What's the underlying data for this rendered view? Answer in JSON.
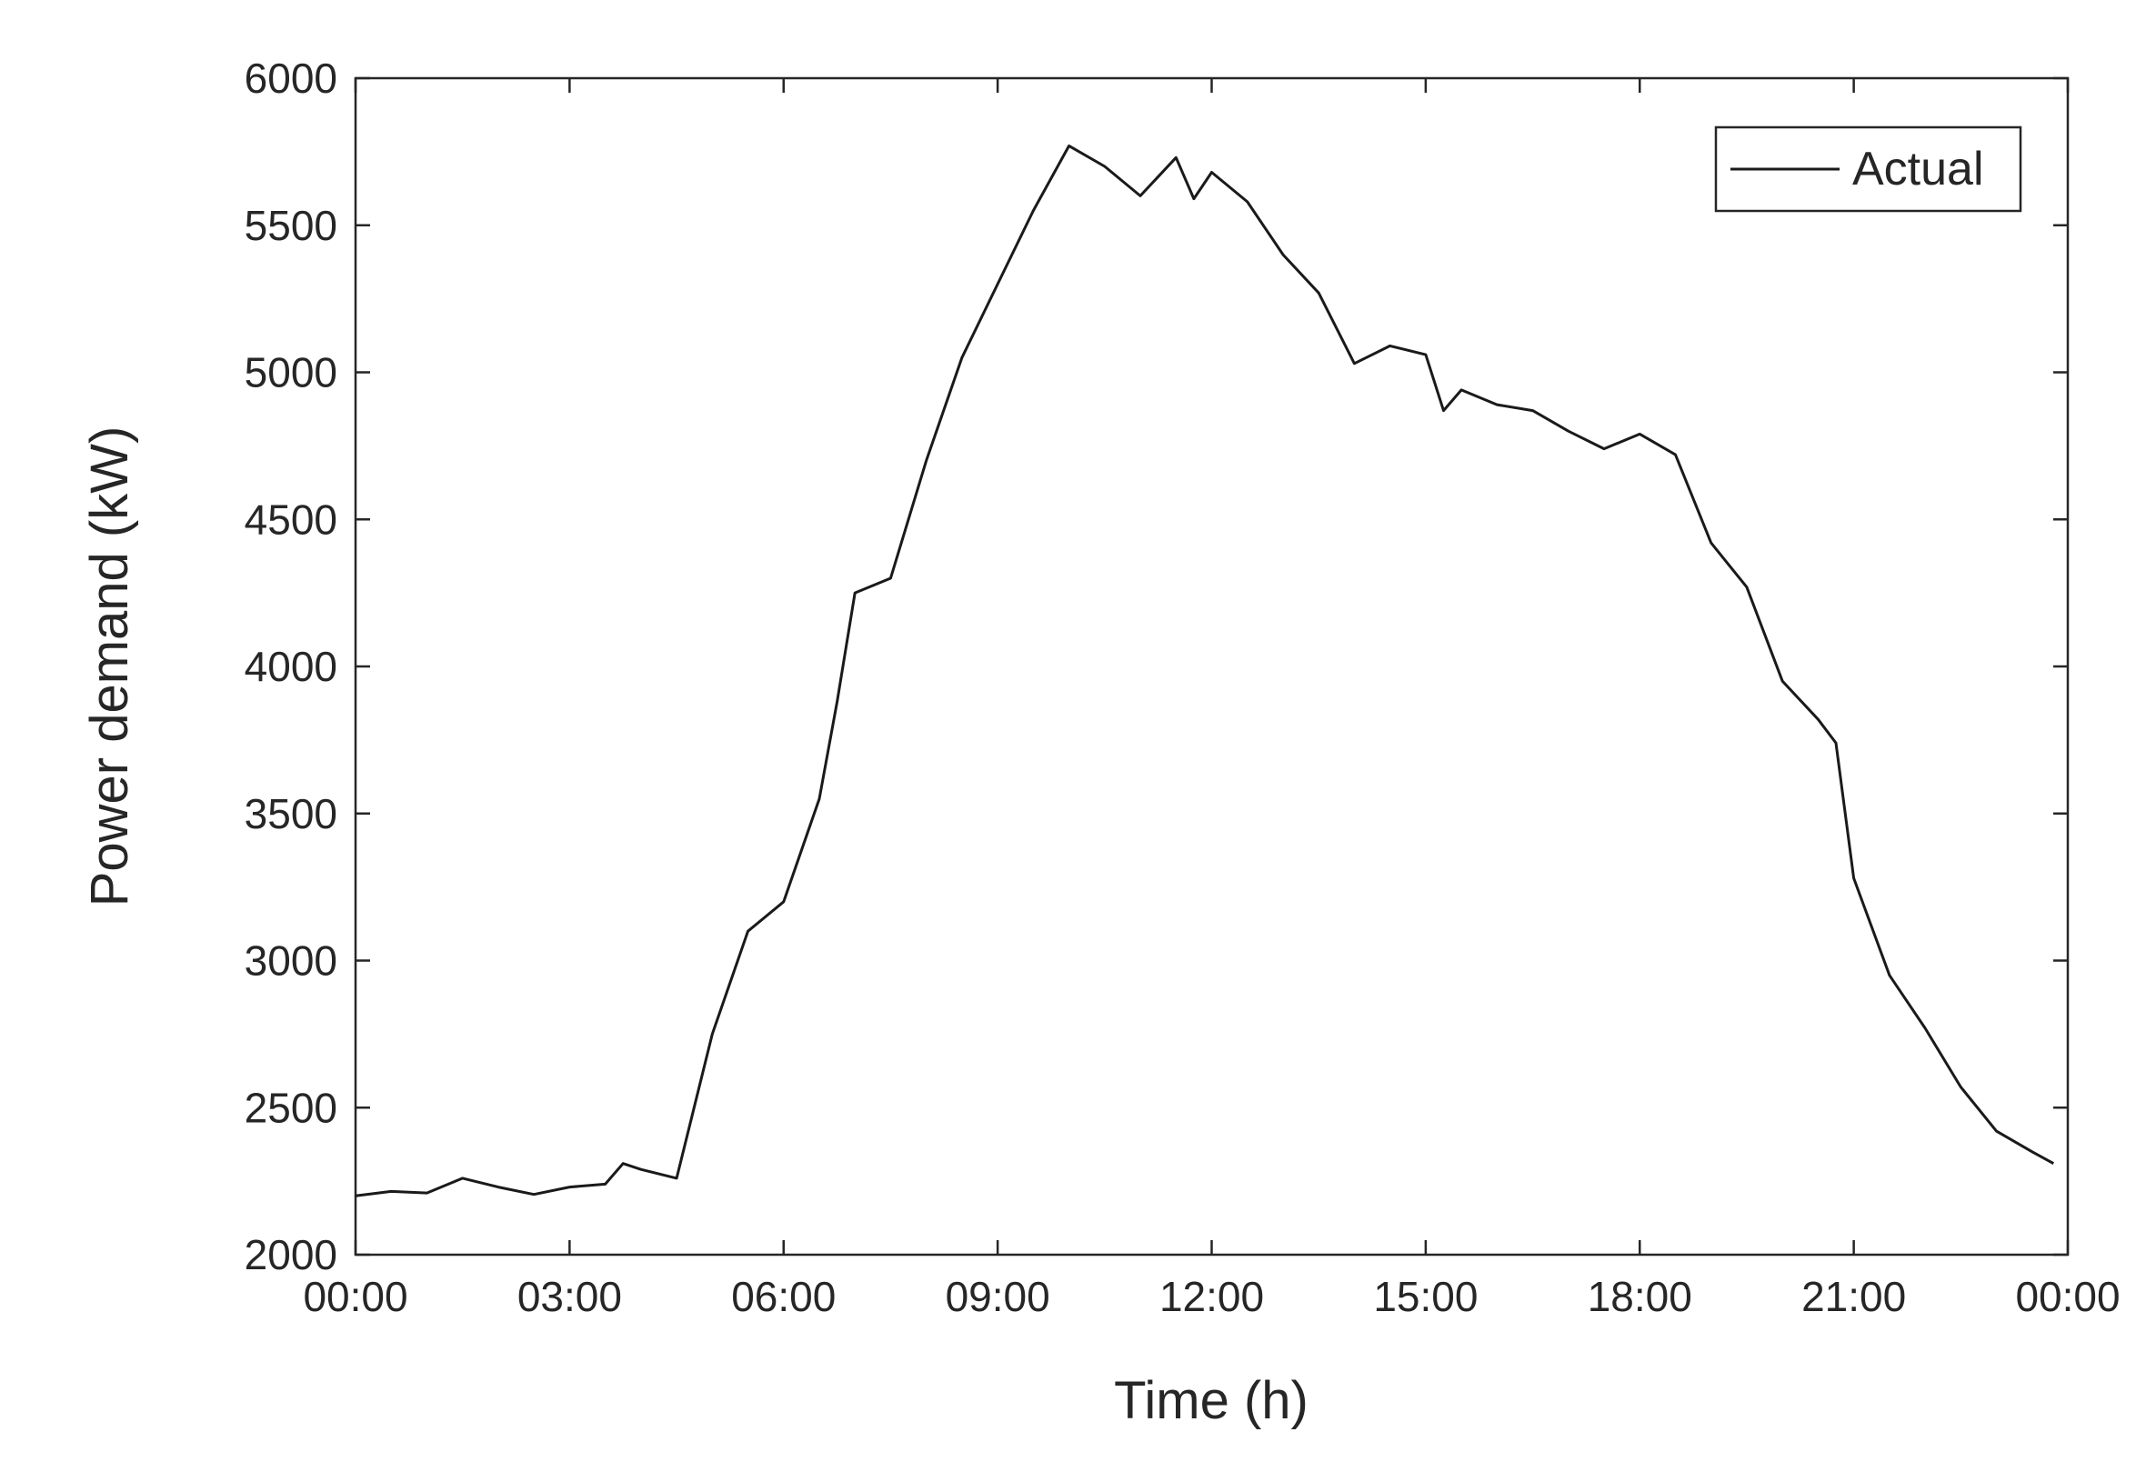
{
  "chart_data": {
    "type": "line",
    "x_label": "Time (h)",
    "y_label": "Power demand (kW)",
    "x": [
      0,
      0.5,
      1,
      1.5,
      2,
      2.5,
      3,
      3.5,
      3.75,
      4,
      4.5,
      5,
      5.5,
      6,
      6.5,
      6.75,
      7,
      7.5,
      8,
      8.5,
      9,
      9.5,
      10,
      10.5,
      11,
      11.5,
      11.75,
      12,
      12.5,
      13,
      13.5,
      14,
      14.5,
      15,
      15.25,
      15.5,
      16,
      16.5,
      17,
      17.5,
      18,
      18.5,
      19,
      19.5,
      20,
      20.5,
      20.75,
      21,
      21.5,
      22,
      22.5,
      23,
      23.5,
      23.8
    ],
    "series": [
      {
        "name": "Actual",
        "color": "#1a1a1a",
        "values": [
          2200,
          2215,
          2210,
          2260,
          2230,
          2205,
          2230,
          2240,
          2310,
          2290,
          2260,
          2750,
          3100,
          3200,
          3550,
          3880,
          4250,
          4300,
          4700,
          5050,
          5300,
          5550,
          5770,
          5700,
          5600,
          5730,
          5590,
          5680,
          5580,
          5400,
          5270,
          5030,
          5090,
          5060,
          4870,
          4940,
          4890,
          4870,
          4800,
          4740,
          4790,
          4720,
          4420,
          4270,
          3950,
          3820,
          3740,
          3280,
          2950,
          2770,
          2570,
          2420,
          2350,
          2310
        ]
      }
    ],
    "xlim": [
      0,
      24
    ],
    "xticks": [
      {
        "value": 0,
        "label": "00:00"
      },
      {
        "value": 3,
        "label": "03:00"
      },
      {
        "value": 6,
        "label": "06:00"
      },
      {
        "value": 9,
        "label": "09:00"
      },
      {
        "value": 12,
        "label": "12:00"
      },
      {
        "value": 15,
        "label": "15:00"
      },
      {
        "value": 18,
        "label": "18:00"
      },
      {
        "value": 21,
        "label": "21:00"
      },
      {
        "value": 24,
        "label": "00:00"
      }
    ],
    "ylim": [
      2000,
      6000
    ],
    "yticks": [
      2000,
      2500,
      3000,
      3500,
      4000,
      4500,
      5000,
      5500,
      6000
    ],
    "legend": "upper right",
    "grid": false
  }
}
